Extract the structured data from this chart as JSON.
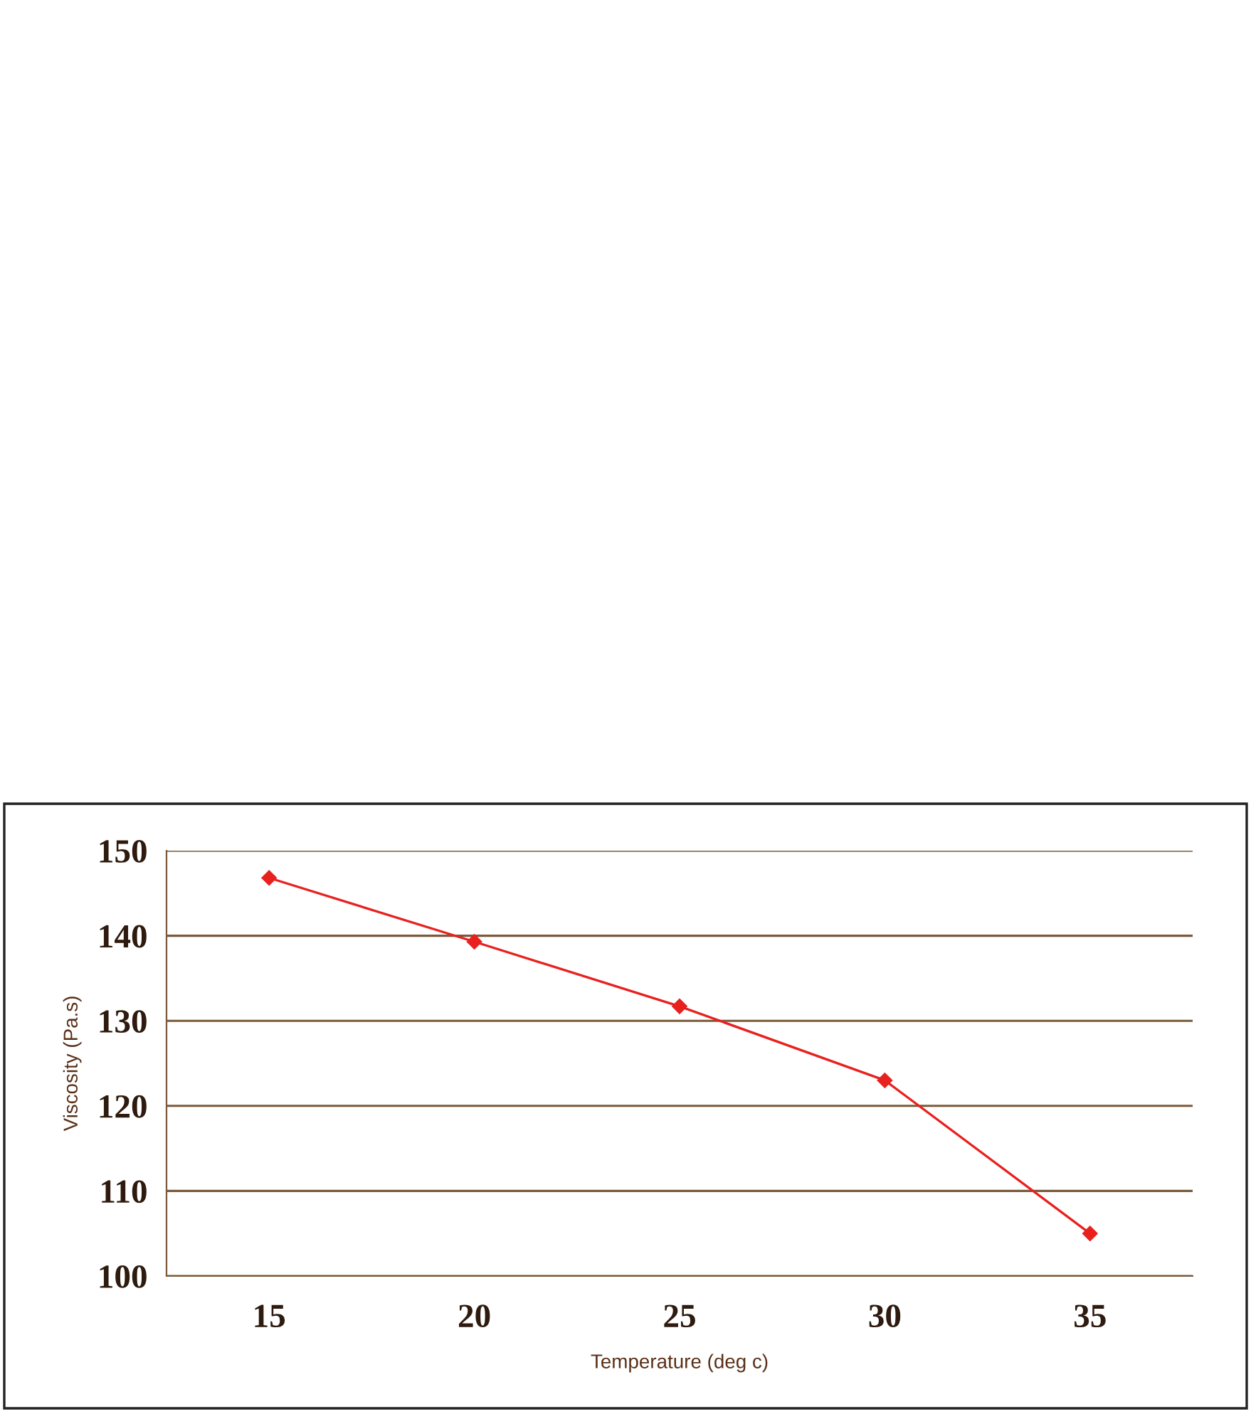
{
  "chart_data": {
    "type": "line",
    "xlabel": "Temperature (deg c)",
    "ylabel": "Viscosity (Pa.s)",
    "categories": [
      "15",
      "20",
      "25",
      "30",
      "35"
    ],
    "series": [
      {
        "color": "#e8211f",
        "values": [
          146.8,
          139.3,
          131.7,
          123.0,
          105.0
        ]
      }
    ],
    "ylim": [
      100,
      150
    ],
    "yticks": [
      100,
      110,
      120,
      130,
      140,
      150
    ],
    "grid": "y",
    "marker": "diamond",
    "line_style": "solid",
    "legend": false
  }
}
